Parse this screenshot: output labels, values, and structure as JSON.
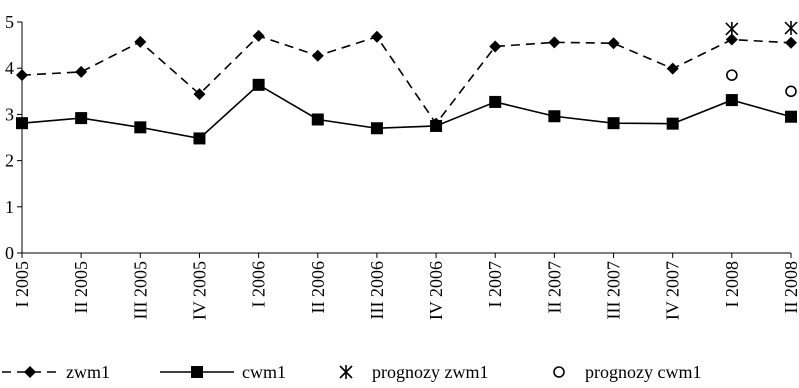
{
  "chart_data": {
    "type": "line",
    "title": "",
    "xlabel": "",
    "ylabel": "",
    "ylim": [
      0,
      5
    ],
    "yticks": [
      "0",
      "1",
      "2",
      "3",
      "4",
      "5"
    ],
    "grid": false,
    "legend_position": "bottom",
    "categories": [
      "I 2005",
      "II 2005",
      "III 2005",
      "IV 2005",
      "I 2006",
      "II 2006",
      "III 2006",
      "IV 2006",
      "I 2007",
      "II 2007",
      "III 2007",
      "IV 2007",
      "I 2008",
      "II 2008"
    ],
    "series": [
      {
        "name": "zwm1",
        "style": "dashed",
        "marker": "diamond",
        "color": "#000000",
        "values": [
          3.85,
          3.92,
          4.57,
          3.44,
          4.7,
          4.27,
          4.68,
          2.8,
          4.47,
          4.56,
          4.54,
          3.99,
          4.62,
          4.55
        ]
      },
      {
        "name": "cwm1",
        "style": "solid",
        "marker": "square",
        "color": "#000000",
        "values": [
          2.81,
          2.92,
          2.72,
          2.48,
          3.64,
          2.89,
          2.7,
          2.75,
          3.27,
          2.96,
          2.81,
          2.8,
          3.31,
          2.95
        ]
      },
      {
        "name": "prognozy zwm1",
        "style": "none",
        "marker": "asterisk",
        "color": "#000000",
        "values": [
          null,
          null,
          null,
          null,
          null,
          null,
          null,
          null,
          null,
          null,
          null,
          null,
          4.85,
          4.87
        ]
      },
      {
        "name": "prognozy cwm1",
        "style": "none",
        "marker": "circle",
        "color": "#000000",
        "values": [
          null,
          null,
          null,
          null,
          null,
          null,
          null,
          null,
          null,
          null,
          null,
          null,
          3.85,
          3.5
        ]
      }
    ]
  }
}
